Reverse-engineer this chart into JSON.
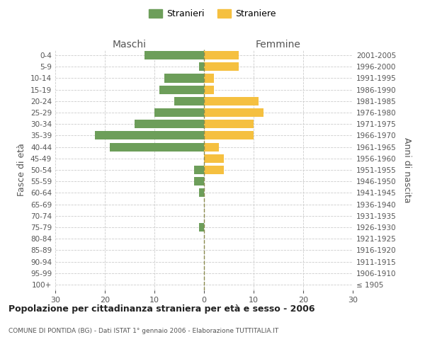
{
  "age_groups": [
    "100+",
    "95-99",
    "90-94",
    "85-89",
    "80-84",
    "75-79",
    "70-74",
    "65-69",
    "60-64",
    "55-59",
    "50-54",
    "45-49",
    "40-44",
    "35-39",
    "30-34",
    "25-29",
    "20-24",
    "15-19",
    "10-14",
    "5-9",
    "0-4"
  ],
  "birth_years": [
    "≤ 1905",
    "1906-1910",
    "1911-1915",
    "1916-1920",
    "1921-1925",
    "1926-1930",
    "1931-1935",
    "1936-1940",
    "1941-1945",
    "1946-1950",
    "1951-1955",
    "1956-1960",
    "1961-1965",
    "1966-1970",
    "1971-1975",
    "1976-1980",
    "1981-1985",
    "1986-1990",
    "1991-1995",
    "1996-2000",
    "2001-2005"
  ],
  "maschi": [
    0,
    0,
    0,
    0,
    0,
    1,
    0,
    0,
    1,
    2,
    2,
    0,
    19,
    22,
    14,
    10,
    6,
    9,
    8,
    1,
    12
  ],
  "femmine": [
    0,
    0,
    0,
    0,
    0,
    0,
    0,
    0,
    0,
    0,
    4,
    4,
    3,
    10,
    10,
    12,
    11,
    2,
    2,
    7,
    7
  ],
  "maschi_color": "#6d9e5a",
  "femmine_color": "#f5c040",
  "center_line_color": "#8b8b4e",
  "title": "Popolazione per cittadinanza straniera per età e sesso - 2006",
  "subtitle": "COMUNE DI PONTIDA (BG) - Dati ISTAT 1° gennaio 2006 - Elaborazione TUTTITALIA.IT",
  "ylabel_left": "Fasce di età",
  "ylabel_right": "Anni di nascita",
  "header_maschi": "Maschi",
  "header_femmine": "Femmine",
  "legend_maschi": "Stranieri",
  "legend_femmine": "Straniere",
  "xlim": 30,
  "background_color": "#ffffff",
  "grid_color": "#cccccc",
  "bar_height": 0.75,
  "label_color": "#555555"
}
